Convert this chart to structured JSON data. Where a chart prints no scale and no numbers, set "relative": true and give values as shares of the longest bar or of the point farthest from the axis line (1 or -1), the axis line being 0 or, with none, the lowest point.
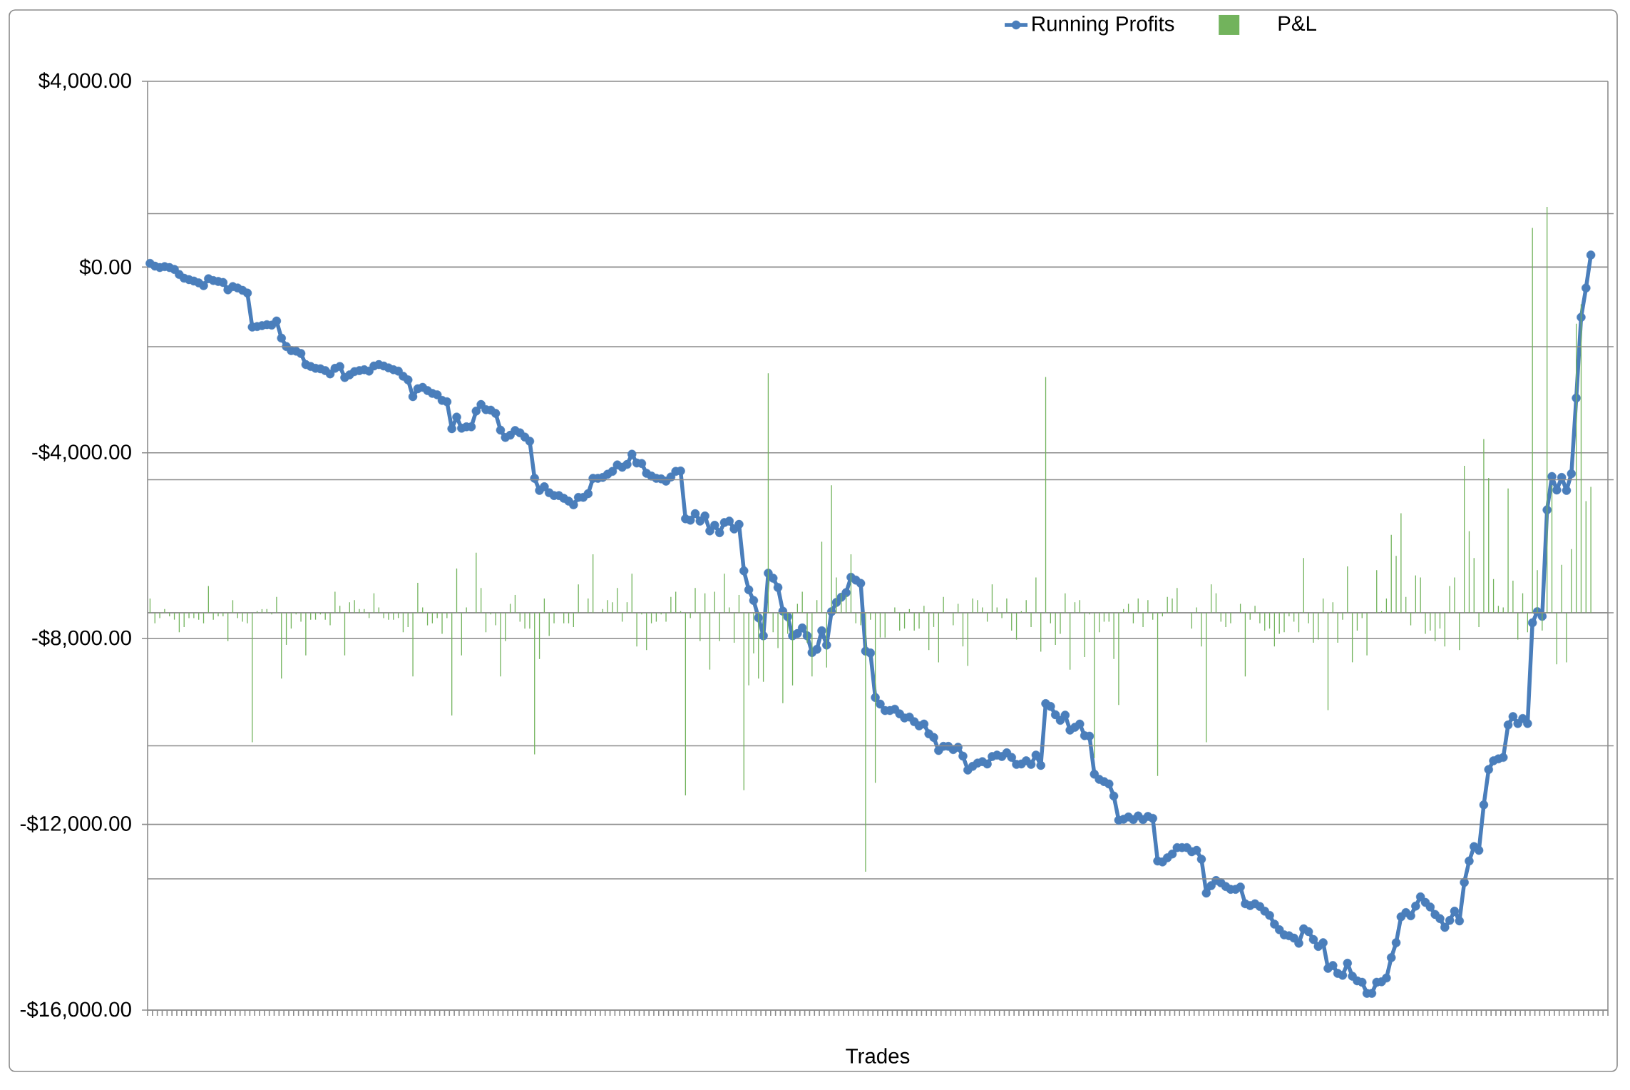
{
  "chart_data": [
    {
      "type": "line",
      "xlabel": "Trades",
      "categories": [
        null,
        null,
        null,
        null,
        null,
        null,
        null,
        null,
        null,
        null,
        null,
        null,
        null,
        null,
        null,
        null,
        null,
        null,
        null,
        null,
        null,
        null,
        null,
        null,
        null,
        null,
        null,
        null,
        null,
        null,
        null,
        null,
        null,
        null,
        null,
        null,
        null,
        null,
        null,
        null,
        null,
        null,
        null,
        null,
        null,
        null,
        null,
        null,
        null,
        null,
        null,
        null,
        null,
        null,
        null,
        null,
        null,
        null,
        null,
        null,
        null,
        null,
        null,
        null,
        null,
        null,
        null,
        null,
        null,
        null,
        null,
        null,
        null,
        null,
        null,
        null,
        null,
        null,
        null,
        null,
        null,
        null,
        null,
        null,
        null,
        null,
        null,
        null,
        null,
        null,
        null,
        null,
        null,
        null,
        null,
        null,
        null,
        null,
        null,
        null,
        null,
        null,
        null,
        null,
        null,
        null,
        null,
        null,
        null,
        null,
        null,
        null,
        null,
        null,
        null,
        null,
        null,
        null,
        null,
        null,
        null,
        null,
        null,
        null,
        null,
        null,
        null,
        null,
        null,
        null,
        null,
        null,
        null,
        null,
        null,
        null,
        null,
        null,
        null,
        null,
        null,
        null,
        null,
        null,
        null,
        null,
        null,
        null,
        null,
        null,
        null,
        null,
        null,
        null,
        null,
        null,
        null,
        null,
        null,
        null,
        null,
        null,
        null,
        null,
        null,
        null,
        null,
        null,
        null,
        null,
        null,
        null,
        null,
        null,
        null,
        null,
        null,
        null,
        null,
        null,
        null,
        null,
        null,
        null,
        null,
        null,
        null,
        null,
        null,
        null,
        null,
        null,
        null,
        null,
        null,
        null,
        null,
        null,
        null,
        null,
        null,
        null,
        null,
        null,
        null,
        null,
        null,
        null,
        null,
        null,
        null,
        null,
        null,
        null,
        null,
        null,
        null,
        null,
        null,
        null,
        null,
        null,
        null,
        null,
        null,
        null,
        null,
        null,
        null,
        null,
        null,
        null,
        null,
        null,
        null,
        null,
        null,
        null,
        null,
        null,
        null,
        null,
        null,
        null,
        null,
        null,
        null,
        null,
        null,
        null,
        null,
        null,
        null,
        null,
        null,
        null,
        null,
        null,
        null,
        null,
        null,
        null,
        null,
        null,
        null,
        null,
        null,
        null,
        null,
        null,
        null,
        null,
        null,
        null,
        null,
        null,
        null,
        null,
        null,
        null,
        null,
        null,
        null,
        null,
        null,
        null,
        null,
        null,
        null,
        null,
        null,
        null,
        null,
        null,
        null,
        null,
        null,
        null,
        null,
        null
      ],
      "series": [
        {
          "name": "Running Profits",
          "color": "#4a7ebb",
          "values": [
            80,
            20,
            -10,
            10,
            -10,
            -50,
            -160,
            -240,
            -270,
            -300,
            -340,
            -400,
            -250,
            -290,
            -310,
            -330,
            -490,
            -420,
            -450,
            -500,
            -560,
            -1290,
            -1280,
            -1260,
            -1240,
            -1250,
            -1160,
            -1530,
            -1710,
            -1800,
            -1810,
            -1860,
            -2100,
            -2140,
            -2180,
            -2190,
            -2230,
            -2300,
            -2180,
            -2140,
            -2380,
            -2320,
            -2250,
            -2230,
            -2210,
            -2240,
            -2130,
            -2100,
            -2130,
            -2170,
            -2210,
            -2240,
            -2350,
            -2430,
            -2790,
            -2620,
            -2590,
            -2660,
            -2720,
            -2750,
            -2870,
            -2900,
            -3480,
            -3230,
            -3470,
            -3440,
            -3440,
            -3100,
            -2960,
            -3070,
            -3080,
            -3150,
            -3510,
            -3670,
            -3620,
            -3520,
            -3570,
            -3660,
            -3750,
            -4550,
            -4810,
            -4730,
            -4860,
            -4920,
            -4920,
            -4980,
            -5040,
            -5120,
            -4960,
            -4960,
            -4880,
            -4550,
            -4550,
            -4530,
            -4460,
            -4400,
            -4260,
            -4310,
            -4250,
            -4030,
            -4220,
            -4230,
            -4440,
            -4500,
            -4550,
            -4560,
            -4610,
            -4520,
            -4400,
            -4390,
            -5420,
            -5450,
            -5310,
            -5470,
            -5360,
            -5680,
            -5560,
            -5720,
            -5500,
            -5470,
            -5640,
            -5540,
            -6540,
            -6950,
            -7180,
            -7550,
            -7940,
            -6590,
            -6700,
            -6900,
            -7410,
            -7530,
            -7940,
            -7890,
            -7770,
            -7940,
            -8300,
            -8230,
            -7830,
            -8140,
            -7420,
            -7220,
            -7110,
            -7010,
            -6680,
            -6740,
            -6810,
            -8270,
            -8310,
            -9270,
            -9410,
            -9550,
            -9550,
            -9520,
            -9620,
            -9710,
            -9690,
            -9790,
            -9880,
            -9840,
            -10050,
            -10130,
            -10410,
            -10320,
            -10320,
            -10390,
            -10340,
            -10530,
            -10830,
            -10750,
            -10680,
            -10650,
            -10700,
            -10540,
            -10510,
            -10540,
            -10460,
            -10560,
            -10710,
            -10700,
            -10630,
            -10710,
            -10510,
            -10730,
            -9400,
            -9460,
            -9640,
            -9760,
            -9650,
            -9970,
            -9910,
            -9840,
            -10090,
            -10100,
            -10920,
            -11030,
            -11080,
            -11130,
            -11390,
            -11910,
            -11890,
            -11840,
            -11900,
            -11820,
            -11900,
            -11830,
            -11870,
            -12790,
            -12810,
            -12720,
            -12640,
            -12500,
            -12500,
            -12500,
            -12590,
            -12560,
            -12750,
            -13480,
            -13320,
            -13210,
            -13260,
            -13340,
            -13400,
            -13400,
            -13350,
            -13710,
            -13750,
            -13710,
            -13770,
            -13870,
            -13960,
            -14150,
            -14270,
            -14380,
            -14400,
            -14450,
            -14560,
            -14250,
            -14310,
            -14480,
            -14630,
            -14550,
            -15100,
            -15040,
            -15210,
            -15250,
            -14990,
            -15270,
            -15370,
            -15400,
            -15640,
            -15640,
            -15400,
            -15390,
            -15310,
            -14870,
            -14550,
            -13990,
            -13900,
            -13970,
            -13760,
            -13560,
            -13680,
            -13780,
            -13940,
            -14030,
            -14220,
            -14070,
            -13870,
            -14080,
            -13250,
            -12790,
            -12480,
            -12560,
            -11580,
            -10820,
            -10630,
            -10590,
            -10560,
            -9860,
            -9680,
            -9830,
            -9720,
            -9830,
            -7660,
            -7420,
            -7520,
            -5230,
            -4510,
            -4800,
            -4530,
            -4810,
            -4450,
            -2820,
            -1080,
            -450,
            260,
            null,
            null,
            null
          ]
        }
      ],
      "ylim": [
        -16000,
        4000
      ],
      "yticks": [
        {
          "value": -16000,
          "label": "-$16,000.00"
        },
        {
          "value": -12000,
          "label": "-$12,000.00"
        },
        {
          "value": -8000,
          "label": "-$8,000.00"
        },
        {
          "value": -4000,
          "label": "-$4,000.00"
        },
        {
          "value": 0,
          "label": "$0.00"
        },
        {
          "value": 4000,
          "label": "$4,000.00"
        }
      ],
      "grid": "y",
      "legend": "top",
      "tick_labels": "y",
      "marker": "circle"
    },
    {
      "type": "bar",
      "relative": true,
      "categories": [
        null,
        null,
        null,
        null,
        null,
        null,
        null,
        null,
        null,
        null,
        null,
        null,
        null,
        null,
        null,
        null,
        null,
        null,
        null,
        null,
        null,
        null,
        null,
        null,
        null,
        null,
        null,
        null,
        null,
        null,
        null,
        null,
        null,
        null,
        null,
        null,
        null,
        null,
        null,
        null,
        null,
        null,
        null,
        null,
        null,
        null,
        null,
        null,
        null,
        null,
        null,
        null,
        null,
        null,
        null,
        null,
        null,
        null,
        null,
        null,
        null,
        null,
        null,
        null,
        null,
        null,
        null,
        null,
        null,
        null,
        null,
        null,
        null,
        null,
        null,
        null,
        null,
        null,
        null,
        null,
        null,
        null,
        null,
        null,
        null,
        null,
        null,
        null,
        null,
        null,
        null,
        null,
        null,
        null,
        null,
        null,
        null,
        null,
        null,
        null,
        null,
        null,
        null,
        null,
        null,
        null,
        null,
        null,
        null,
        null,
        null,
        null,
        null,
        null,
        null,
        null,
        null,
        null,
        null,
        null,
        null,
        null,
        null,
        null,
        null,
        null,
        null,
        null,
        null,
        null,
        null,
        null,
        null,
        null,
        null,
        null,
        null,
        null,
        null,
        null,
        null,
        null,
        null,
        null,
        null,
        null,
        null,
        null,
        null,
        null,
        null,
        null,
        null,
        null,
        null,
        null,
        null,
        null,
        null,
        null,
        null,
        null,
        null,
        null,
        null,
        null,
        null,
        null,
        null,
        null,
        null,
        null,
        null,
        null,
        null,
        null,
        null,
        null,
        null,
        null,
        null,
        null,
        null,
        null,
        null,
        null,
        null,
        null,
        null,
        null,
        null,
        null,
        null,
        null,
        null,
        null,
        null,
        null,
        null,
        null,
        null,
        null,
        null,
        null,
        null,
        null,
        null,
        null,
        null,
        null,
        null,
        null,
        null,
        null,
        null,
        null,
        null,
        null,
        null,
        null,
        null,
        null,
        null,
        null,
        null,
        null,
        null,
        null,
        null,
        null,
        null,
        null,
        null,
        null,
        null,
        null,
        null,
        null,
        null,
        null,
        null,
        null,
        null,
        null,
        null,
        null,
        null,
        null,
        null,
        null,
        null,
        null,
        null,
        null,
        null,
        null,
        null,
        null,
        null,
        null,
        null,
        null,
        null,
        null,
        null,
        null,
        null,
        null,
        null,
        null,
        null,
        null,
        null,
        null,
        null,
        null,
        null,
        null,
        null,
        null,
        null,
        null,
        null,
        null,
        null,
        null,
        null,
        null,
        null,
        null,
        null,
        null,
        null,
        null,
        null,
        null,
        null,
        null,
        null,
        null
      ],
      "series": [
        {
          "name": "P&L",
          "color": "#72b35c",
          "values": [
            0.035,
            -0.026,
            -0.013,
            0.009,
            -0.009,
            -0.017,
            -0.048,
            -0.035,
            -0.013,
            -0.013,
            -0.017,
            -0.026,
            0.066,
            -0.017,
            -0.009,
            -0.009,
            -0.07,
            0.031,
            -0.013,
            -0.022,
            -0.026,
            -0.319,
            0.004,
            0.009,
            0.009,
            -0.004,
            0.039,
            -0.162,
            -0.079,
            -0.039,
            -0.004,
            -0.022,
            -0.105,
            -0.017,
            -0.017,
            -0.004,
            -0.017,
            -0.031,
            0.052,
            0.017,
            -0.105,
            0.026,
            0.031,
            0.009,
            0.009,
            -0.013,
            0.048,
            0.013,
            -0.013,
            -0.017,
            -0.017,
            -0.013,
            -0.048,
            -0.035,
            -0.157,
            0.074,
            0.013,
            -0.031,
            -0.026,
            -0.013,
            -0.052,
            -0.013,
            -0.253,
            0.109,
            -0.105,
            0.013,
            0,
            0.148,
            0.061,
            -0.048,
            -0.004,
            -0.031,
            -0.157,
            -0.07,
            0.022,
            0.044,
            -0.022,
            -0.039,
            -0.039,
            -0.349,
            -0.114,
            0.035,
            -0.057,
            -0.026,
            0,
            -0.026,
            -0.026,
            -0.035,
            0.07,
            0,
            0.035,
            0.144,
            0,
            0.009,
            0.031,
            0.026,
            0.061,
            -0.022,
            0.026,
            0.096,
            -0.083,
            -0.004,
            -0.092,
            -0.026,
            -0.022,
            -0.004,
            -0.022,
            0.039,
            0.052,
            0.004,
            -0.45,
            -0.013,
            0.061,
            -0.07,
            0.048,
            -0.14,
            0.052,
            -0.07,
            0.096,
            0.013,
            -0.074,
            0.044,
            -0.437,
            -0.179,
            -0.1,
            -0.162,
            -0.17,
            0.59,
            -0.048,
            -0.087,
            -0.223,
            -0.052,
            -0.179,
            0.022,
            0.052,
            -0.074,
            -0.157,
            0.031,
            0.175,
            -0.135,
            0.314,
            0.087,
            0.048,
            0.044,
            0.144,
            -0.026,
            -0.031,
            -0.638,
            -0.017,
            -0.419,
            -0.061,
            -0.061,
            0,
            0.013,
            -0.044,
            -0.039,
            0.009,
            -0.044,
            -0.039,
            0.017,
            -0.092,
            -0.035,
            -0.122,
            0.039,
            0,
            -0.031,
            0.022,
            -0.083,
            -0.131,
            0.035,
            0.031,
            0.013,
            -0.022,
            0.07,
            0.013,
            -0.013,
            0.035,
            -0.044,
            -0.066,
            0.004,
            0.031,
            -0.035,
            0.087,
            -0.096,
            0.581,
            -0.026,
            -0.079,
            -0.052,
            0.048,
            -0.14,
            0.026,
            0.031,
            -0.109,
            -0.004,
            -0.358,
            -0.048,
            -0.022,
            -0.022,
            -0.114,
            -0.227,
            0.009,
            0.022,
            -0.026,
            0.035,
            -0.035,
            0.031,
            -0.017,
            -0.402,
            -0.009,
            0.039,
            0.035,
            0.061,
            0,
            0,
            -0.039,
            0.013,
            -0.083,
            -0.319,
            0.07,
            0.048,
            -0.022,
            -0.035,
            -0.026,
            0,
            0.022,
            -0.157,
            -0.017,
            0.017,
            -0.026,
            -0.044,
            -0.039,
            -0.083,
            -0.052,
            -0.048,
            -0.009,
            -0.022,
            -0.048,
            0.135,
            -0.026,
            -0.074,
            -0.066,
            0.035,
            -0.24,
            0.026,
            -0.074,
            -0.017,
            0.114,
            -0.122,
            -0.044,
            -0.013,
            -0.105,
            0,
            0.105,
            0.004,
            0.035,
            0.192,
            0.14,
            0.245,
            0.039,
            -0.031,
            0.092,
            0.087,
            -0.052,
            -0.044,
            -0.07,
            -0.039,
            -0.083,
            0.066,
            0.087,
            -0.092,
            0.362,
            0.201,
            0.135,
            -0.035,
            0.428,
            0.332,
            0.083,
            0.017,
            0.013,
            0.306,
            0.079,
            -0.066,
            0.048,
            -0.048,
            0.948,
            0.105,
            -0.044,
            1,
            0.314,
            -0.127,
            0.118,
            -0.122,
            0.157,
            0.712,
            0.76,
            0.275,
            0.31,
            null,
            null,
            null
          ]
        }
      ],
      "grid": "y",
      "legend": "top",
      "tick_labels": false
    }
  ]
}
